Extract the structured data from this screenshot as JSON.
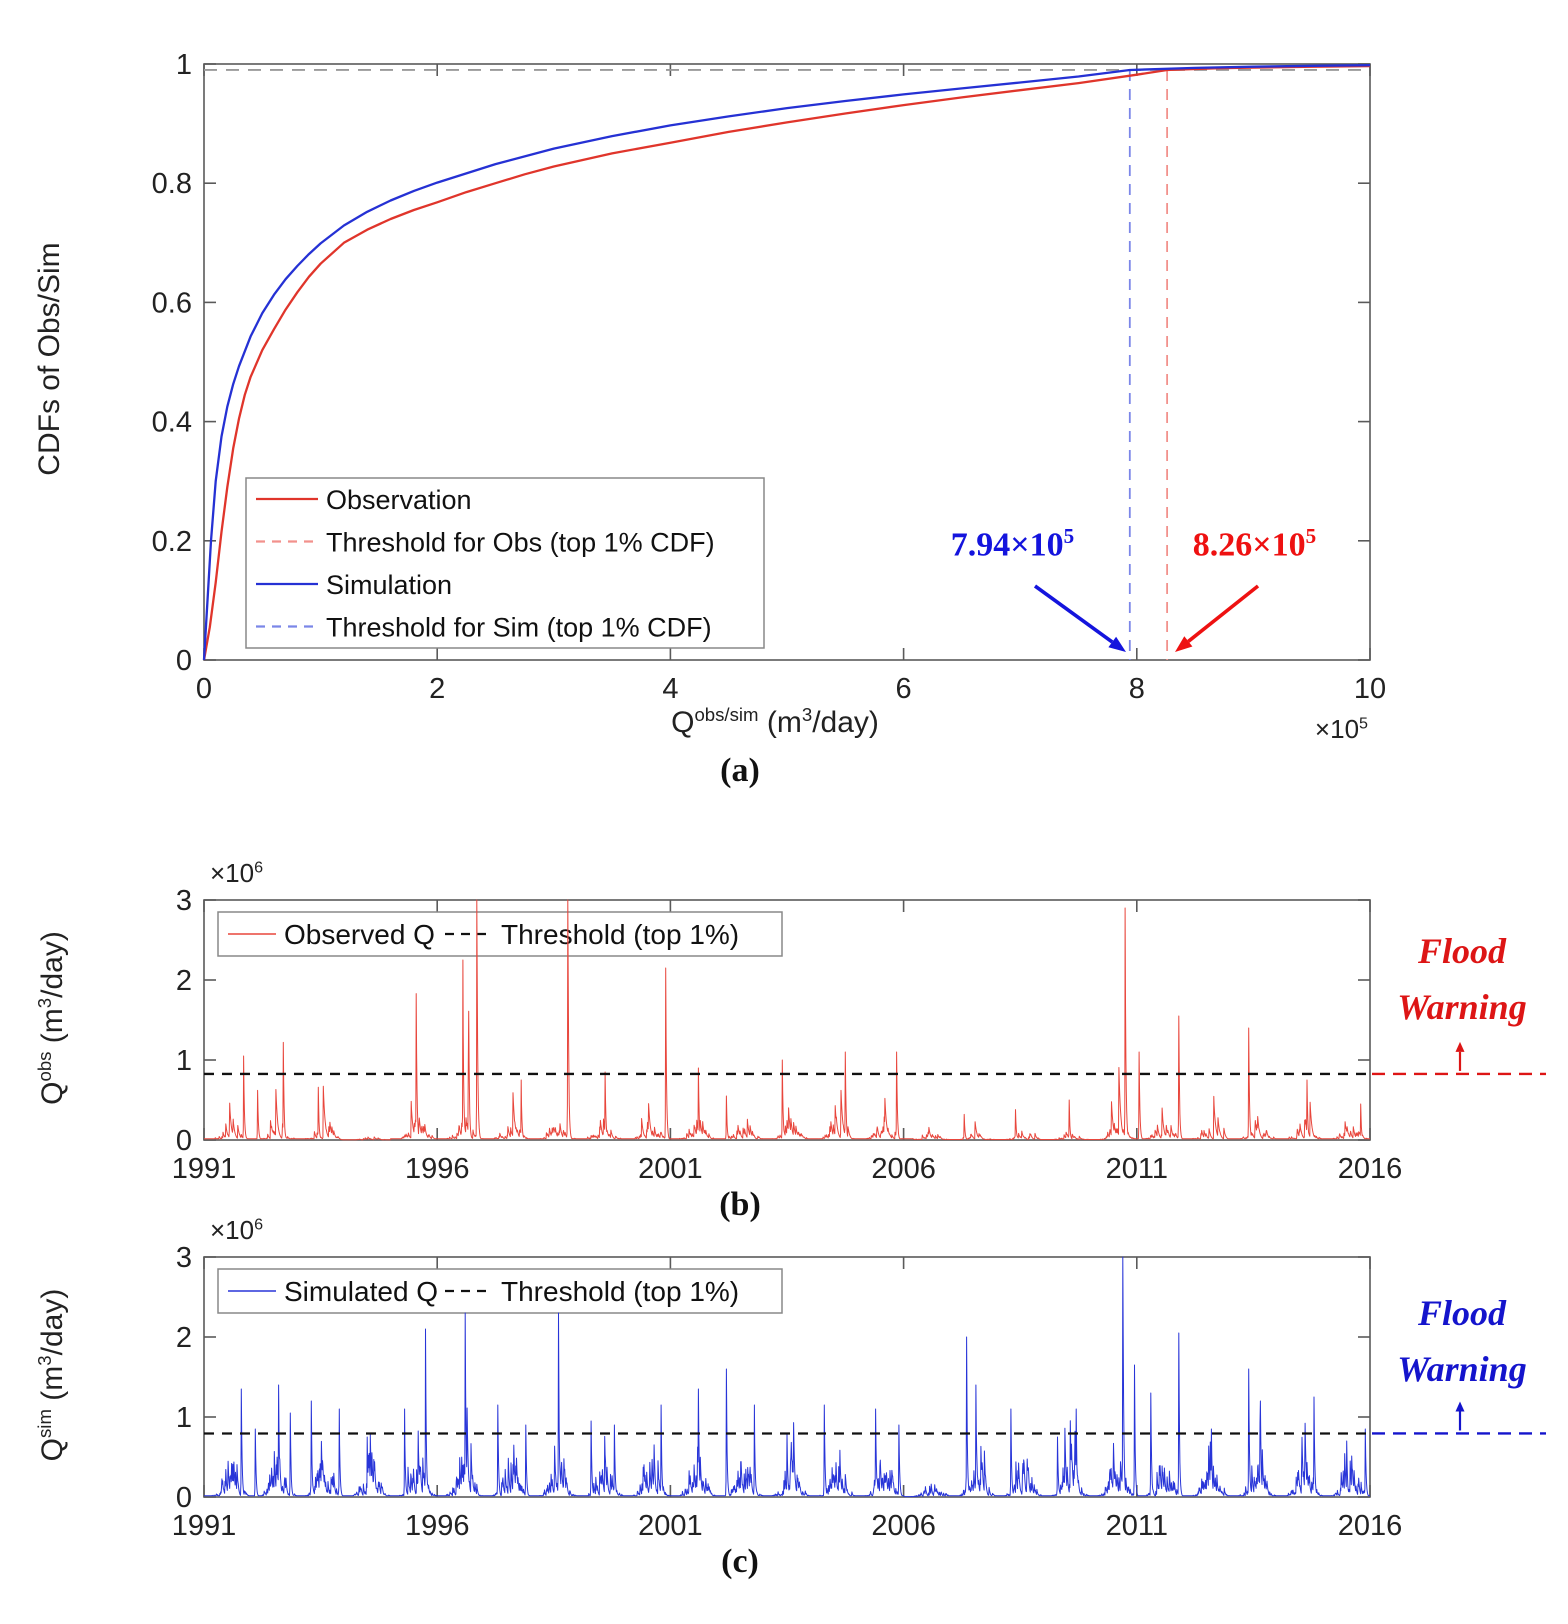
{
  "colors": {
    "red": "#e0352b",
    "red_light": "#f2918c",
    "red_series": "#e8463c",
    "blue": "#2531d4",
    "blue_light": "#7b86e8",
    "blue_series": "#2835d8",
    "annotation_blue": "#1414dd",
    "annotation_red": "#ee1111",
    "flood_red": "#dd1515",
    "flood_blue": "#1414cc",
    "threshold_black": "#111111",
    "axis": "#5a5a5a",
    "tick_label": "#222222",
    "ref_gray": "#9a9a9a",
    "legend_border": "#888888"
  },
  "panel_a": {
    "label": "(a)",
    "ylabel": "CDFs of Obs/Sim",
    "xlabel": {
      "base": "Q",
      "sup": "obs/sim",
      "mid": " (m",
      "sup2": "3",
      "end": "/day)"
    },
    "offset": {
      "base": "×10",
      "exp": "5"
    },
    "legend": [
      "Observation",
      "Threshold for Obs (top 1% CDF)",
      "Simulation",
      "Threshold for Sim (top 1% CDF)"
    ],
    "annotation_sim": {
      "base": "7.94×10",
      "exp": "5"
    },
    "annotation_obs": {
      "base": "8.26×10",
      "exp": "5"
    }
  },
  "panel_b": {
    "label": "(b)",
    "offset": {
      "base": "×10",
      "exp": "6"
    },
    "ylabel": {
      "base": "Q",
      "sup": "obs",
      "mid": " (m",
      "sup2": "3",
      "end": "/day)"
    },
    "legend": [
      "Observed Q",
      "Threshold (top 1%)"
    ],
    "flood": {
      "line1": "Flood",
      "line2": "Warning"
    }
  },
  "panel_c": {
    "label": "(c)",
    "offset": {
      "base": "×10",
      "exp": "6"
    },
    "ylabel": {
      "base": "Q",
      "sup": "sim",
      "mid": " (m",
      "sup2": "3",
      "end": "/day)"
    },
    "legend": [
      "Simulated Q",
      "Threshold (top 1%)"
    ],
    "flood": {
      "line1": "Flood",
      "line2": "Warning"
    }
  },
  "chart_data": [
    {
      "id": "panel_a_cdf",
      "type": "line",
      "title": "CDFs of observed and simulated discharge",
      "xlabel": "Q^{obs/sim} (m^3/day)",
      "ylabel": "CDFs of Obs/Sim",
      "x_multiplier": 100000,
      "xlim": [
        0,
        10
      ],
      "ylim": [
        0,
        1
      ],
      "xtick_labels": [
        "0",
        "2",
        "4",
        "6",
        "8",
        "10"
      ],
      "xtick_values": [
        0,
        2,
        4,
        6,
        8,
        10
      ],
      "ytick_labels": [
        "0",
        "0.2",
        "0.4",
        "0.6",
        "0.8",
        "1"
      ],
      "ytick_values": [
        0,
        0.2,
        0.4,
        0.6,
        0.8,
        1
      ],
      "grid": false,
      "legend_position": "inside-lower-left",
      "series": [
        {
          "name": "Observation",
          "style": "solid",
          "color_key": "red",
          "points": [
            [
              0,
              0
            ],
            [
              0.05,
              0.055
            ],
            [
              0.1,
              0.13
            ],
            [
              0.15,
              0.215
            ],
            [
              0.2,
              0.29
            ],
            [
              0.25,
              0.355
            ],
            [
              0.3,
              0.405
            ],
            [
              0.35,
              0.445
            ],
            [
              0.4,
              0.475
            ],
            [
              0.5,
              0.52
            ],
            [
              0.6,
              0.555
            ],
            [
              0.7,
              0.588
            ],
            [
              0.8,
              0.617
            ],
            [
              0.9,
              0.643
            ],
            [
              1,
              0.665
            ],
            [
              1.2,
              0.7
            ],
            [
              1.4,
              0.722
            ],
            [
              1.6,
              0.74
            ],
            [
              1.8,
              0.755
            ],
            [
              2,
              0.768
            ],
            [
              2.25,
              0.785
            ],
            [
              2.5,
              0.8
            ],
            [
              2.75,
              0.815
            ],
            [
              3,
              0.828
            ],
            [
              3.5,
              0.85
            ],
            [
              4,
              0.868
            ],
            [
              4.5,
              0.886
            ],
            [
              5,
              0.902
            ],
            [
              5.5,
              0.917
            ],
            [
              6,
              0.931
            ],
            [
              6.5,
              0.944
            ],
            [
              7,
              0.956
            ],
            [
              7.5,
              0.968
            ],
            [
              8,
              0.982
            ],
            [
              8.26,
              0.99
            ],
            [
              8.7,
              0.993
            ],
            [
              9,
              0.994
            ],
            [
              9.5,
              0.9955
            ],
            [
              10,
              0.9965
            ]
          ]
        },
        {
          "name": "Simulation",
          "style": "solid",
          "color_key": "blue",
          "points": [
            [
              0,
              0
            ],
            [
              0.03,
              0.1
            ],
            [
              0.06,
              0.2
            ],
            [
              0.1,
              0.3
            ],
            [
              0.15,
              0.375
            ],
            [
              0.2,
              0.425
            ],
            [
              0.25,
              0.463
            ],
            [
              0.3,
              0.493
            ],
            [
              0.4,
              0.543
            ],
            [
              0.5,
              0.582
            ],
            [
              0.6,
              0.613
            ],
            [
              0.7,
              0.639
            ],
            [
              0.8,
              0.661
            ],
            [
              0.9,
              0.681
            ],
            [
              1,
              0.699
            ],
            [
              1.2,
              0.729
            ],
            [
              1.4,
              0.752
            ],
            [
              1.6,
              0.771
            ],
            [
              1.8,
              0.787
            ],
            [
              2,
              0.801
            ],
            [
              2.5,
              0.832
            ],
            [
              3,
              0.858
            ],
            [
              3.5,
              0.879
            ],
            [
              4,
              0.897
            ],
            [
              4.5,
              0.912
            ],
            [
              5,
              0.926
            ],
            [
              5.5,
              0.938
            ],
            [
              6,
              0.949
            ],
            [
              6.5,
              0.959
            ],
            [
              7,
              0.969
            ],
            [
              7.5,
              0.979
            ],
            [
              7.94,
              0.99
            ],
            [
              8.5,
              0.9935
            ],
            [
              9,
              0.9955
            ],
            [
              9.5,
              0.997
            ],
            [
              10,
              0.998
            ]
          ]
        }
      ],
      "reference_lines": [
        {
          "name": "cdf-0.99-level",
          "orientation": "horizontal",
          "value": 0.99,
          "color_key": "ref_gray",
          "style": "dashed"
        },
        {
          "name": "Threshold for Sim (top 1% CDF)",
          "orientation": "vertical",
          "value": 7.94,
          "color_key": "blue_light",
          "style": "dashed"
        },
        {
          "name": "Threshold for Obs (top 1% CDF)",
          "orientation": "vertical",
          "value": 8.26,
          "color_key": "red_light",
          "style": "dashed"
        }
      ],
      "annotations": [
        {
          "text": "7.94×10^5",
          "points_to_x": 7.94,
          "color_key": "annotation_blue"
        },
        {
          "text": "8.26×10^5",
          "points_to_x": 8.26,
          "color_key": "annotation_red"
        }
      ]
    },
    {
      "id": "panel_b_observed_q",
      "type": "line",
      "series_name": "Observed Q",
      "color_key": "red_series",
      "y_multiplier": 1000000,
      "xlim": [
        1991,
        2016
      ],
      "ylim": [
        0,
        3
      ],
      "xtick_labels": [
        "1991",
        "1996",
        "2001",
        "2006",
        "2011",
        "2016"
      ],
      "xtick_values": [
        1991,
        1996,
        2001,
        2006,
        2011,
        2016
      ],
      "ytick_labels": [
        "0",
        "1",
        "2",
        "3"
      ],
      "ytick_values": [
        0,
        1,
        2,
        3
      ],
      "threshold": {
        "name": "Threshold (top 1%)",
        "value": 0.826,
        "style": "dashed",
        "color_key": "threshold_black"
      },
      "flood_warning_color_key": "flood_red",
      "clip_max": 3,
      "major_peaks": [
        [
          1991.85,
          1.05
        ],
        [
          1992.15,
          0.62
        ],
        [
          1992.7,
          1.22
        ],
        [
          1993.45,
          0.66
        ],
        [
          1995.55,
          1.83
        ],
        [
          1996.55,
          2.25
        ],
        [
          1996.67,
          2.2
        ],
        [
          1996.85,
          3.5
        ],
        [
          1997.8,
          0.75
        ],
        [
          1998.8,
          3.5
        ],
        [
          1999.6,
          0.85
        ],
        [
          2000.9,
          2.15
        ],
        [
          2001.6,
          0.9
        ],
        [
          2002.2,
          0.55
        ],
        [
          2003.4,
          1.0
        ],
        [
          2004.75,
          1.1
        ],
        [
          2005.85,
          1.1
        ],
        [
          2007.3,
          0.32
        ],
        [
          2008.4,
          0.38
        ],
        [
          2009.55,
          0.5
        ],
        [
          2010.75,
          2.9
        ],
        [
          2011.05,
          1.1
        ],
        [
          2011.9,
          1.55
        ],
        [
          2013.4,
          1.4
        ],
        [
          2014.65,
          0.75
        ],
        [
          2015.8,
          0.45
        ]
      ],
      "texture": {
        "seed": 11,
        "recession": 0.8,
        "noise_amp": 0.28,
        "noise_pow": 5,
        "spike_prob": 0.022,
        "quiet": [
          [
            2006.2,
            2010.3,
            0.4
          ],
          [
            1993.9,
            1995.0,
            0.15
          ]
        ]
      }
    },
    {
      "id": "panel_c_simulated_q",
      "type": "line",
      "series_name": "Simulated Q",
      "color_key": "blue_series",
      "y_multiplier": 1000000,
      "xlim": [
        1991,
        2016
      ],
      "ylim": [
        0,
        3
      ],
      "xtick_labels": [
        "1991",
        "1996",
        "2001",
        "2006",
        "2011",
        "2016"
      ],
      "xtick_values": [
        1991,
        1996,
        2001,
        2006,
        2011,
        2016
      ],
      "ytick_labels": [
        "0",
        "1",
        "2",
        "3"
      ],
      "ytick_values": [
        0,
        1,
        2,
        3
      ],
      "threshold": {
        "name": "Threshold (top 1%)",
        "value": 0.794,
        "style": "dashed",
        "color_key": "threshold_black"
      },
      "flood_warning_color_key": "flood_blue",
      "clip_max": 3,
      "major_peaks": [
        [
          1991.8,
          1.35
        ],
        [
          1992.1,
          0.85
        ],
        [
          1992.6,
          1.4
        ],
        [
          1992.85,
          1.05
        ],
        [
          1993.3,
          1.2
        ],
        [
          1993.9,
          1.1
        ],
        [
          1994.5,
          0.75
        ],
        [
          1995.3,
          1.1
        ],
        [
          1995.75,
          2.1
        ],
        [
          1996.6,
          2.3
        ],
        [
          1997.3,
          1.15
        ],
        [
          1997.9,
          0.9
        ],
        [
          1998.6,
          2.3
        ],
        [
          1999.3,
          0.95
        ],
        [
          1999.8,
          0.9
        ],
        [
          2000.8,
          1.15
        ],
        [
          2001.6,
          1.35
        ],
        [
          2002.2,
          1.6
        ],
        [
          2002.8,
          1.15
        ],
        [
          2003.5,
          0.8
        ],
        [
          2004.3,
          1.15
        ],
        [
          2005.4,
          1.1
        ],
        [
          2005.9,
          0.9
        ],
        [
          2007.35,
          2.0
        ],
        [
          2007.55,
          1.4
        ],
        [
          2008.3,
          1.1
        ],
        [
          2009.3,
          0.75
        ],
        [
          2009.7,
          1.1
        ],
        [
          2010.7,
          3.4
        ],
        [
          2010.95,
          1.65
        ],
        [
          2011.3,
          1.3
        ],
        [
          2011.9,
          2.05
        ],
        [
          2012.6,
          0.85
        ],
        [
          2013.4,
          1.6
        ],
        [
          2013.65,
          1.2
        ],
        [
          2014.8,
          1.25
        ],
        [
          2015.5,
          0.7
        ],
        [
          2015.9,
          0.85
        ]
      ],
      "texture": {
        "seed": 77,
        "recession": 0.7,
        "noise_amp": 0.5,
        "noise_pow": 3.2,
        "spike_prob": 0.08,
        "quiet": [
          [
            2006.0,
            2006.9,
            0.35
          ]
        ]
      }
    }
  ]
}
